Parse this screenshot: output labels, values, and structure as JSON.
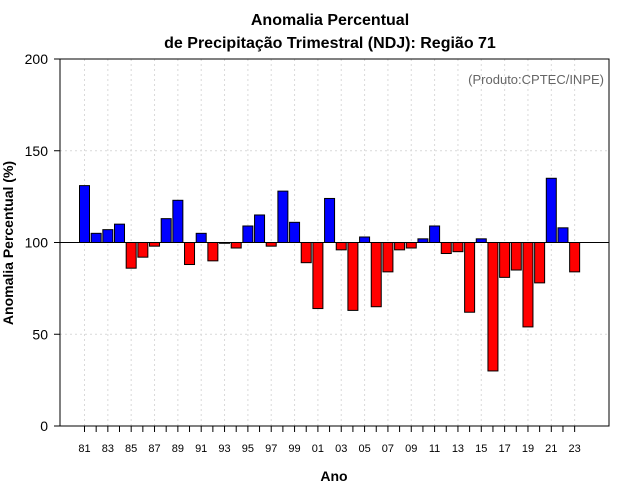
{
  "chart_data": {
    "type": "bar",
    "title_line1": "Anomalia Percentual",
    "title_line2": "de Precipitação Trimestral (NDJ): Região 71",
    "xlabel": "Ano",
    "ylabel": "Anomalia Percentual (%)",
    "credit": "(Produto:CPTEC/INPE)",
    "ylim": [
      0,
      200
    ],
    "yticks": [
      0,
      50,
      100,
      150,
      200
    ],
    "baseline": 100,
    "grid": true,
    "x_tick_labels": [
      "81",
      "83",
      "85",
      "87",
      "89",
      "91",
      "93",
      "95",
      "97",
      "99",
      "01",
      "03",
      "05",
      "07",
      "09",
      "11",
      "13",
      "15",
      "17",
      "19",
      "21",
      "23"
    ],
    "categories": [
      "1981",
      "1982",
      "1983",
      "1984",
      "1985",
      "1986",
      "1987",
      "1988",
      "1989",
      "1990",
      "1991",
      "1992",
      "1993",
      "1994",
      "1995",
      "1996",
      "1997",
      "1998",
      "1999",
      "2000",
      "2001",
      "2002",
      "2003",
      "2004",
      "2005",
      "2006",
      "2007",
      "2008",
      "2009",
      "2010",
      "2011",
      "2012",
      "2013",
      "2014",
      "2015",
      "2016",
      "2017",
      "2018",
      "2019",
      "2020",
      "2021",
      "2022",
      "2023"
    ],
    "values": [
      131,
      105,
      107,
      110,
      86,
      92,
      98,
      113,
      123,
      88,
      105,
      90,
      100,
      97,
      109,
      115,
      98,
      128,
      111,
      89,
      64,
      124,
      96,
      63,
      103,
      65,
      84,
      96,
      97,
      102,
      109,
      94,
      95,
      62,
      102,
      30,
      81,
      85,
      54,
      78,
      135,
      108,
      84
    ],
    "colors": {
      "above": "#0000ff",
      "below": "#ff0000",
      "bar_outline": "#000000",
      "grid": "#d9d9d9",
      "credit": "#666666"
    }
  }
}
